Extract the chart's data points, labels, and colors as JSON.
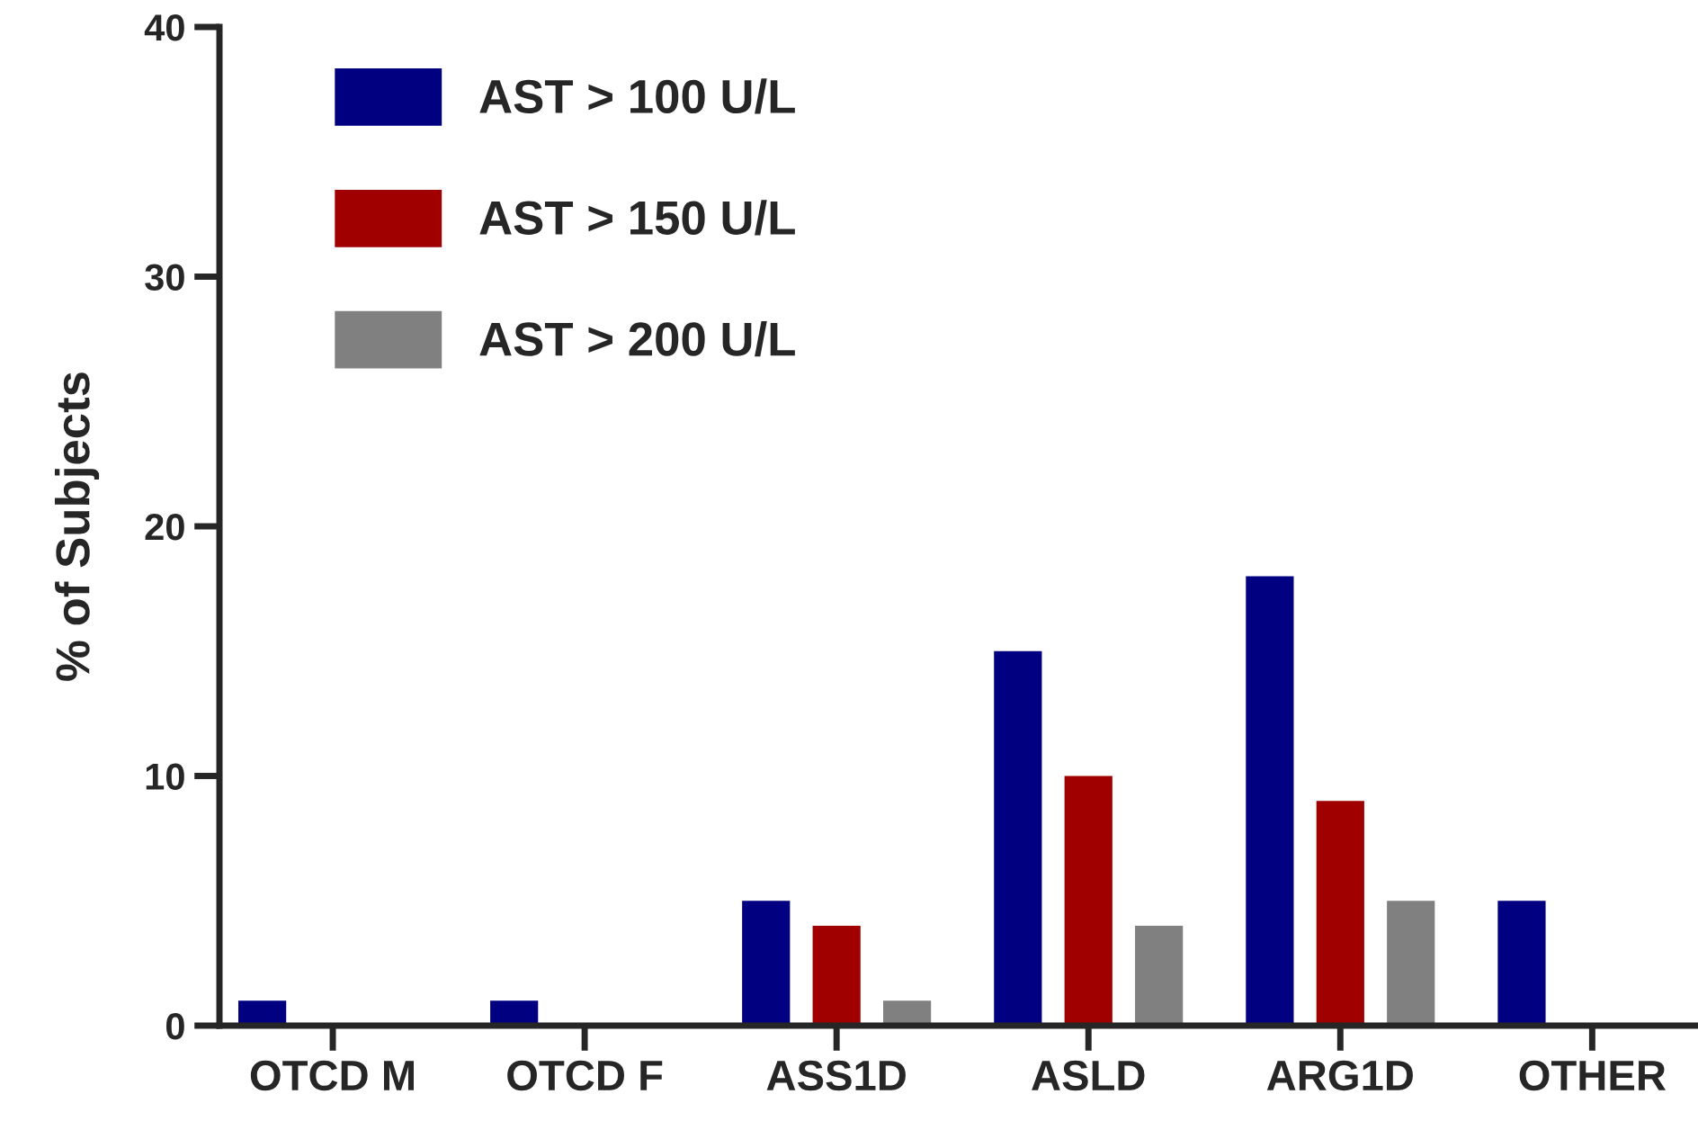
{
  "chart_data": {
    "type": "bar",
    "ylabel": "% of Subjects",
    "categories": [
      "OTCD M",
      "OTCD F",
      "ASS1D",
      "ASLD",
      "ARG1D",
      "OTHER"
    ],
    "series": [
      {
        "name": "AST > 100 U/L",
        "color": "#000080",
        "values": [
          1,
          1,
          5,
          15,
          18,
          5
        ]
      },
      {
        "name": "AST > 150 U/L",
        "color": "#a00000",
        "values": [
          0,
          0,
          4,
          10,
          9,
          0
        ]
      },
      {
        "name": "AST > 200 U/L",
        "color": "#808080",
        "values": [
          0,
          0,
          1,
          4,
          5,
          0
        ]
      }
    ],
    "ylim": [
      0,
      40
    ],
    "yticks": [
      0,
      10,
      20,
      30,
      40
    ],
    "grid": false,
    "legend": "top left"
  }
}
